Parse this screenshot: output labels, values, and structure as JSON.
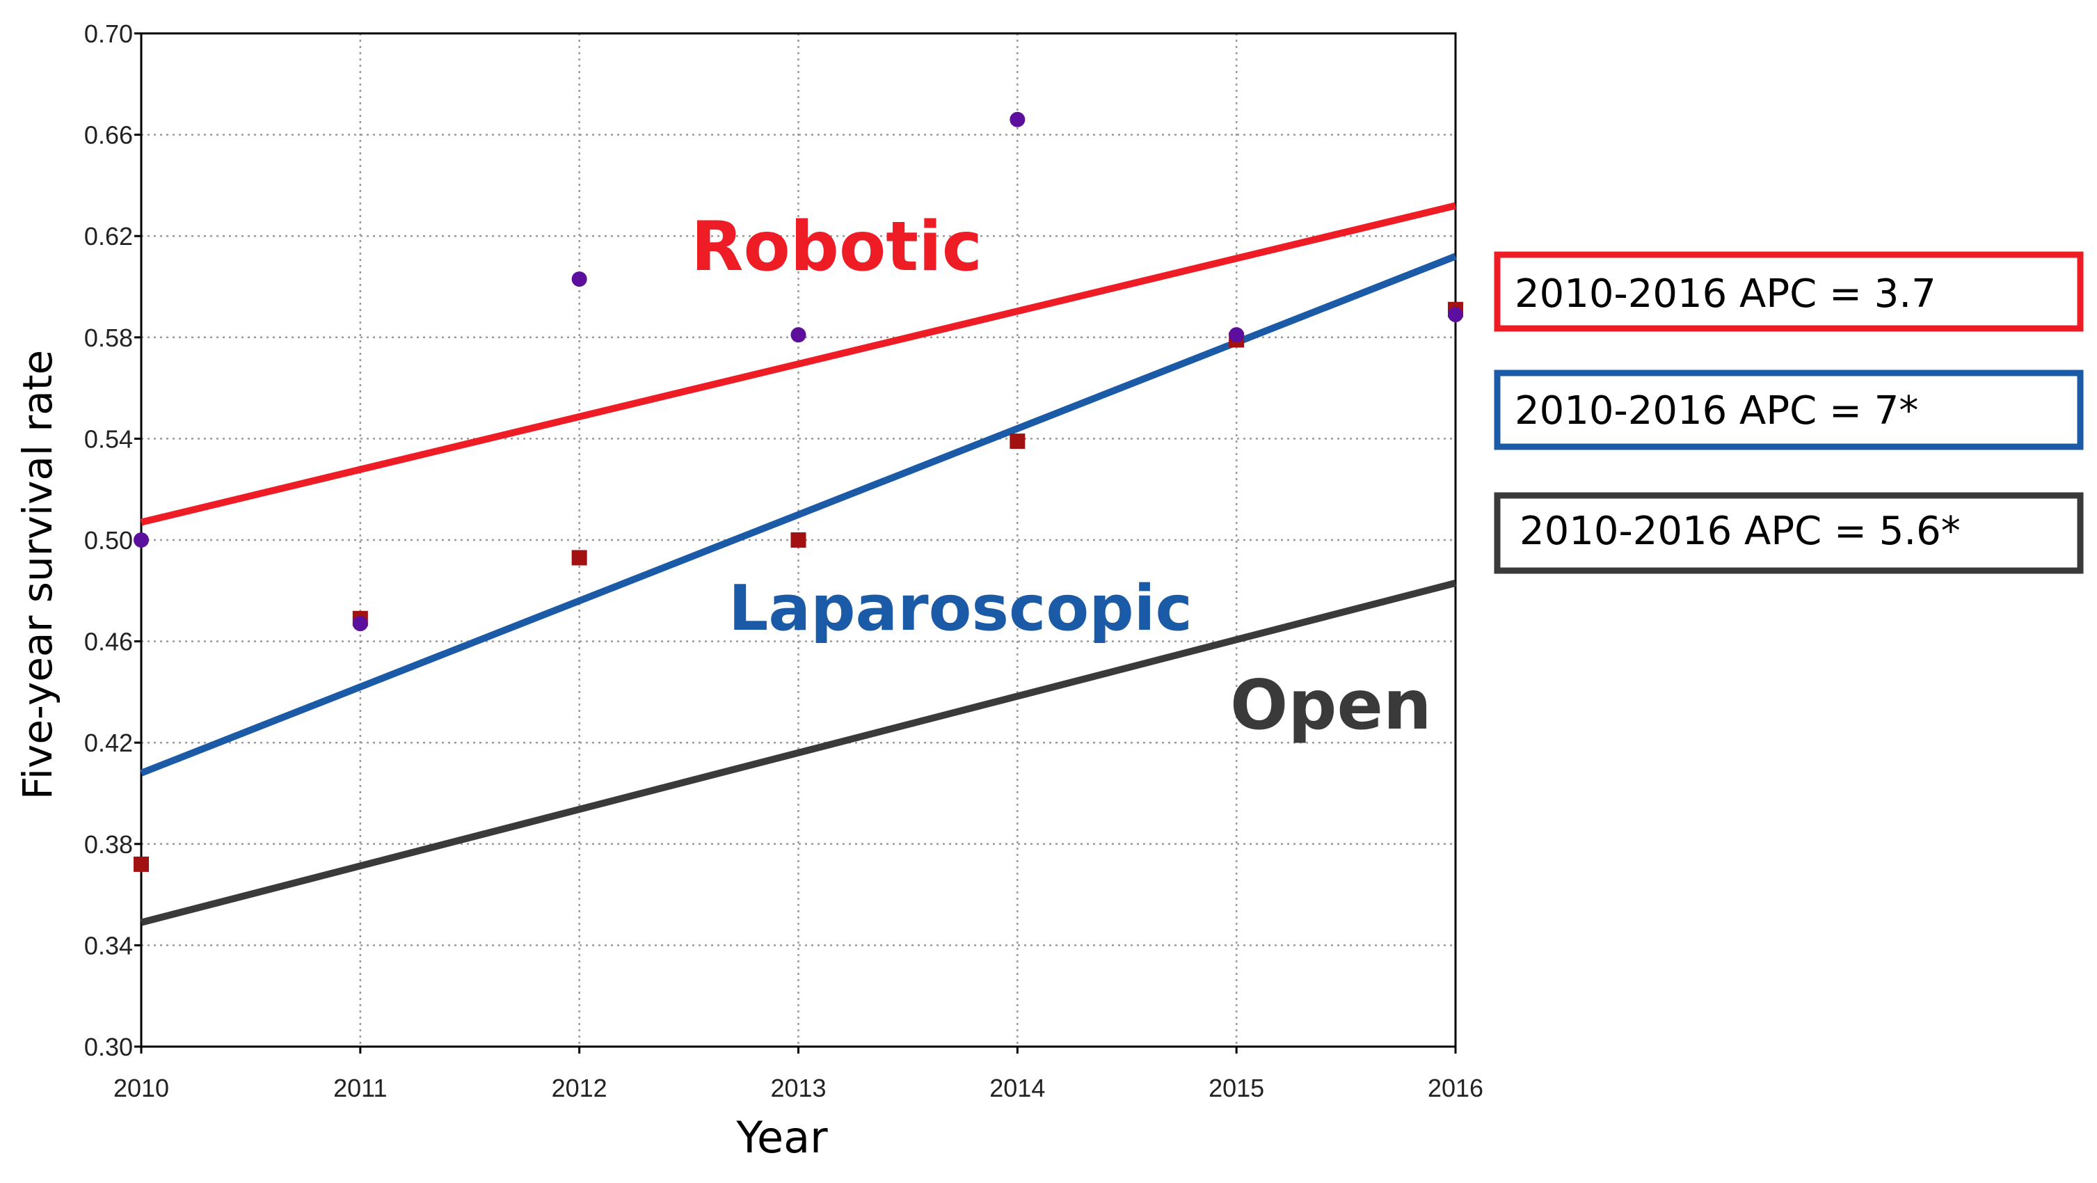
{
  "chart_data": {
    "type": "scatter",
    "xlabel": "Year",
    "ylabel": "Five-year survival rate",
    "xlim": [
      2010,
      2016
    ],
    "ylim": [
      0.3,
      0.7
    ],
    "x_ticks": [
      "2010",
      "2011",
      "2012",
      "2013",
      "2014",
      "2015",
      "2016"
    ],
    "y_ticks": [
      "0.30",
      "0.34",
      "0.38",
      "0.42",
      "0.46",
      "0.50",
      "0.54",
      "0.58",
      "0.62",
      "0.66",
      "0.70"
    ],
    "grid": true,
    "trend_lines": [
      {
        "name": "Robotic",
        "color": "#ee1c25",
        "x": [
          2010,
          2016
        ],
        "y": [
          0.507,
          0.632
        ],
        "apc": "2010-2016 APC = 3.7"
      },
      {
        "name": "Laparoscopic",
        "color": "#1b5aa6",
        "x": [
          2010,
          2016
        ],
        "y": [
          0.408,
          0.612
        ],
        "apc": "2010-2016 APC = 7*"
      },
      {
        "name": "Open",
        "color": "#3a3a3a",
        "x": [
          2010,
          2016
        ],
        "y": [
          0.349,
          0.483
        ],
        "apc": "2010-2016 APC = 5.6*"
      }
    ],
    "points": [
      {
        "marker": "circle",
        "color": "#5b0f9c",
        "x": [
          2010,
          2011,
          2012,
          2013,
          2014,
          2015,
          2016
        ],
        "y": [
          0.5,
          0.467,
          0.603,
          0.581,
          0.666,
          0.581,
          0.589
        ]
      },
      {
        "marker": "square",
        "color": "#a31212",
        "x": [
          2010,
          2011,
          2012,
          2013,
          2014,
          2015,
          2016
        ],
        "y": [
          0.372,
          0.469,
          0.493,
          0.5,
          0.539,
          0.579,
          0.591
        ]
      }
    ]
  }
}
